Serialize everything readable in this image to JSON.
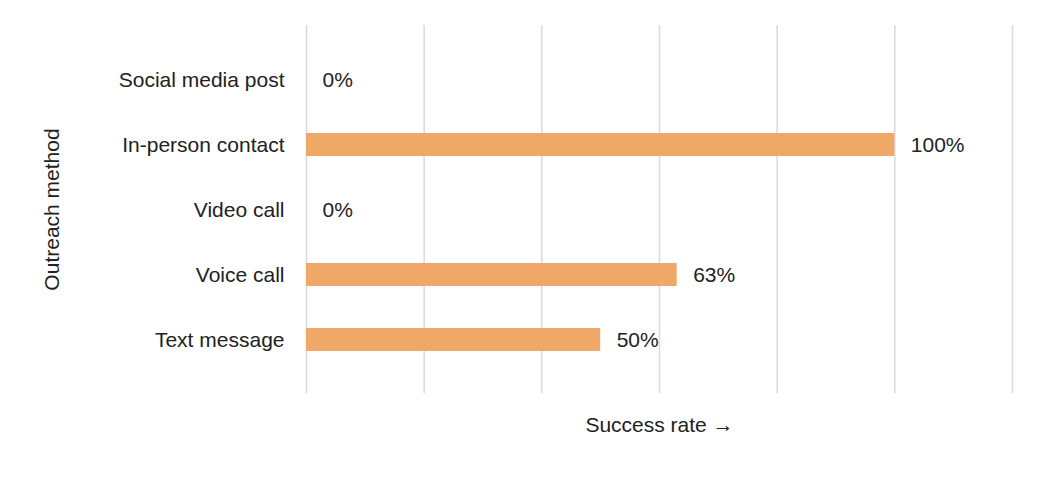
{
  "chart_data": {
    "type": "bar",
    "orientation": "horizontal",
    "categories": [
      "Social media post",
      "In-person contact",
      "Video call",
      "Voice call",
      "Text message"
    ],
    "values": [
      0,
      100,
      0,
      63,
      50
    ],
    "value_labels": [
      "0%",
      "100%",
      "0%",
      "63%",
      "50%"
    ],
    "data_labels": true,
    "color": "#f0a868",
    "x_label": "Success rate",
    "y_label": "Outreach method",
    "xlim": [
      0,
      120
    ],
    "xticks": [
      0,
      20,
      40,
      60,
      80,
      100,
      120
    ],
    "grid": true,
    "tick_labels": "y"
  }
}
